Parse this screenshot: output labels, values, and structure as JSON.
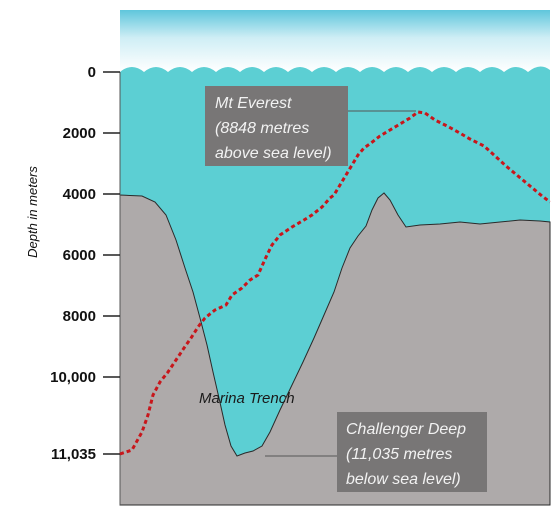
{
  "axis": {
    "title": "Depth in meters",
    "ticks": [
      "0",
      "2000",
      "4000",
      "6000",
      "8000",
      "10,000",
      "11,035"
    ]
  },
  "everest_box": {
    "line1": "Mt Everest",
    "line2": "(8848 metres",
    "line3": "above sea level)"
  },
  "challenger_box": {
    "line1": "Challenger Deep",
    "line2": "(11,035 metres",
    "line3": "below sea level)"
  },
  "trench_label": "Marina Trench",
  "colors": {
    "sky_top": "#5fc6dc",
    "sky_bottom": "#ffffff",
    "water": "#5ccfd3",
    "seabed": "#aeaaaa",
    "label_box": "#787676",
    "everest_line": "#c8161b"
  }
}
